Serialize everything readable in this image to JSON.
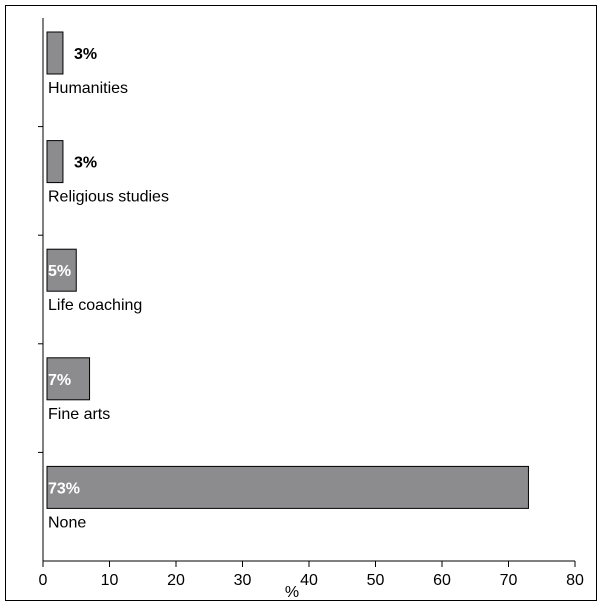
{
  "chart_data": {
    "type": "bar",
    "orientation": "horizontal",
    "categories": [
      "Humanities",
      "Religious studies",
      "Life coaching",
      "Fine arts",
      "None"
    ],
    "values": [
      3,
      3,
      5,
      7,
      73
    ],
    "value_labels": [
      "3%",
      "3%",
      "5%",
      "7%",
      "73%"
    ],
    "xlabel": "%",
    "xlim": [
      0,
      80
    ],
    "xticks": [
      0,
      10,
      20,
      30,
      40,
      50,
      60,
      70,
      80
    ],
    "grid": false,
    "legend": "none",
    "colors": {
      "bar_fill": "#8c8c8e",
      "bar_stroke": "#000000",
      "label_inside": "#ffffff",
      "label_outside": "#000000"
    }
  }
}
